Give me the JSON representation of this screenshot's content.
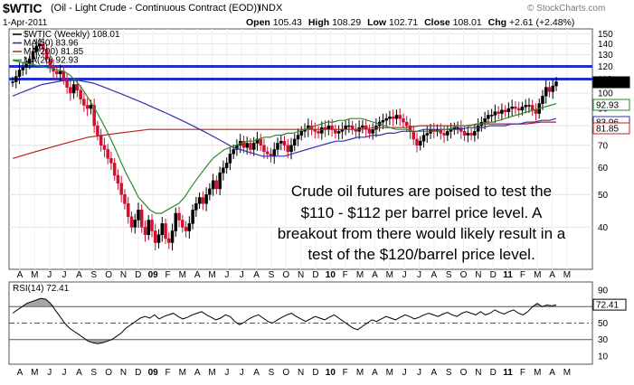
{
  "header": {
    "symbol": "$WTIC",
    "description": "(Oil - Light Crude - Continuous Contract (EOD))",
    "exchange": "INDX",
    "date": "1-Apr-2011",
    "open_label": "Open",
    "open": "105.43",
    "high_label": "High",
    "high": "108.29",
    "low_label": "Low",
    "low": "102.71",
    "close_label": "Close",
    "close": "108.01",
    "chg_label": "Chg",
    "chg": "+2.61 (+2.48%)",
    "watermark": "© StockCharts.com"
  },
  "colors": {
    "up": "#000000",
    "down": "#d01030",
    "ma50": "#3030b0",
    "ma200": "#c02020",
    "ma20": "#2a8a2a",
    "resistance": "#2030d0",
    "rsi_fill": "#808080"
  },
  "chart_data": [
    {
      "type": "candlestick",
      "title": "$WTIC (Weekly) 108.01",
      "scale": "log",
      "ylim": [
        30,
        155
      ],
      "yticks": [
        150,
        140,
        130,
        120,
        110,
        100,
        90,
        80,
        70,
        60,
        50,
        40
      ],
      "xticks": [
        "A",
        "M",
        "J",
        "J",
        "A",
        "S",
        "O",
        "N",
        "D",
        "09",
        "F",
        "M",
        "A",
        "M",
        "J",
        "J",
        "A",
        "S",
        "O",
        "N",
        "D",
        "10",
        "F",
        "M",
        "A",
        "M",
        "J",
        "J",
        "A",
        "S",
        "O",
        "N",
        "D",
        "11",
        "F",
        "M",
        "A",
        "M"
      ],
      "legend": [
        {
          "key": "price",
          "label": "$WTIC (Weekly) 108.01"
        },
        {
          "key": "ma50",
          "label": "MA(50) 83.96"
        },
        {
          "key": "ma200",
          "label": "MA(200) 81.85"
        },
        {
          "key": "ma20",
          "label": "MA(20) 92.93"
        }
      ],
      "horizontal_lines": [
        120,
        110
      ],
      "last_value_tags": [
        {
          "label": "108.01",
          "value": 108.01,
          "key": "price"
        },
        {
          "label": "92.93",
          "value": 92.93,
          "key": "ma20"
        },
        {
          "label": "83.96",
          "value": 83.96,
          "key": "ma50"
        },
        {
          "label": "81.85",
          "value": 81.85,
          "key": "ma200"
        }
      ],
      "annotation": [
        "Crude oil futures are poised to test the",
        "$110 - $112 per barrel price level. A",
        "breakout from there would likely result in a",
        "test of the $120/barrel price level."
      ],
      "close_series": [
        108,
        112,
        117,
        119,
        122,
        126,
        133,
        138,
        140,
        135,
        126,
        120,
        116,
        114,
        116,
        110,
        104,
        100,
        106,
        102,
        96,
        92,
        90,
        92,
        80,
        75,
        70,
        68,
        64,
        62,
        57,
        54,
        50,
        47,
        43,
        40,
        42,
        45,
        40,
        38,
        42,
        39,
        36,
        38,
        41,
        37,
        36,
        39,
        44,
        42,
        40,
        39,
        41,
        45,
        47,
        49,
        47,
        50,
        52,
        55,
        52,
        58,
        60,
        62,
        66,
        68,
        70,
        72,
        69,
        71,
        68,
        71,
        73,
        70,
        67,
        66,
        65,
        68,
        71,
        72,
        70,
        67,
        70,
        73,
        75,
        77,
        78,
        80,
        78,
        77,
        76,
        79,
        78,
        80,
        78,
        76,
        77,
        78,
        80,
        80,
        78,
        77,
        79,
        80,
        78,
        76,
        78,
        80,
        82,
        83,
        84,
        85,
        84,
        86,
        84,
        82,
        80,
        77,
        73,
        70,
        72,
        75,
        76,
        78,
        77,
        78,
        76,
        75,
        77,
        78,
        79,
        79,
        77,
        75,
        76,
        75,
        77,
        80,
        82,
        84,
        86,
        86,
        88,
        87,
        89,
        88,
        90,
        91,
        90,
        89,
        91,
        92,
        92,
        89,
        87,
        93,
        98,
        104,
        101,
        105,
        108
      ],
      "ma20_series": [
        125,
        124,
        123,
        122,
        121,
        120,
        119,
        118,
        117,
        116,
        113,
        109,
        104,
        98,
        92,
        86,
        80,
        74,
        68,
        62,
        57,
        53,
        49,
        47,
        45,
        44,
        44,
        45,
        46,
        47,
        49,
        52,
        55,
        58,
        61,
        64,
        66,
        68,
        69,
        70,
        71,
        72,
        72,
        73,
        74,
        74,
        75,
        75,
        76,
        76,
        77,
        78,
        79,
        80,
        81,
        82,
        82,
        83,
        83,
        84,
        84,
        84,
        83,
        82,
        81,
        80,
        79,
        78,
        78,
        78,
        77,
        77,
        77,
        77,
        77,
        78,
        78,
        79,
        80,
        80,
        80,
        81,
        81,
        82,
        82,
        83,
        84,
        85,
        86,
        87,
        88,
        89,
        90,
        91,
        92,
        93
      ],
      "ma50_series": [
        98,
        100,
        102,
        104,
        106,
        107,
        108,
        109,
        109,
        109,
        108,
        107,
        105,
        103,
        101,
        99,
        97,
        95,
        93,
        91,
        89,
        87,
        85,
        83,
        81,
        79,
        77,
        75,
        73,
        71,
        69,
        68,
        67,
        66,
        65,
        65,
        65,
        65,
        66,
        67,
        68,
        69,
        70,
        71,
        72,
        72,
        73,
        74,
        74,
        75,
        75,
        76,
        76,
        77,
        77,
        77,
        78,
        78,
        78,
        78,
        78,
        78,
        79,
        79,
        79,
        80,
        80,
        80,
        81,
        81,
        82,
        82,
        83,
        83,
        84
      ],
      "ma200_series": [
        64,
        66,
        68,
        70,
        72,
        74,
        75,
        76,
        77,
        78,
        78,
        78,
        78,
        78,
        78,
        78,
        78,
        78,
        78,
        78,
        78,
        78,
        78,
        78,
        79,
        79,
        79,
        80,
        80,
        80,
        80,
        81,
        81,
        81,
        81,
        82,
        82
      ]
    },
    {
      "type": "line",
      "title": "RSI(14) 72.41",
      "ylim": [
        0,
        100
      ],
      "yticks": [
        90,
        70,
        50,
        30,
        10
      ],
      "reference_lines": [
        70,
        50,
        30
      ],
      "last_value_tag": "72.41",
      "xticks": [
        "A",
        "M",
        "J",
        "J",
        "A",
        "S",
        "O",
        "N",
        "D",
        "09",
        "F",
        "M",
        "A",
        "M",
        "J",
        "J",
        "A",
        "S",
        "O",
        "N",
        "D",
        "10",
        "F",
        "M",
        "A",
        "M",
        "J",
        "J",
        "A",
        "S",
        "O",
        "N",
        "D",
        "11",
        "F",
        "M",
        "A",
        "M"
      ],
      "values": [
        62,
        66,
        70,
        74,
        76,
        78,
        80,
        79,
        74,
        66,
        58,
        50,
        44,
        40,
        36,
        32,
        28,
        26,
        25,
        26,
        28,
        30,
        34,
        38,
        44,
        48,
        52,
        56,
        58,
        56,
        60,
        55,
        58,
        60,
        62,
        58,
        55,
        57,
        60,
        62,
        64,
        60,
        57,
        54,
        56,
        60,
        58,
        52,
        48,
        51,
        55,
        58,
        60,
        56,
        52,
        50,
        54,
        57,
        60,
        62,
        58,
        55,
        52,
        55,
        58,
        56,
        54,
        57,
        60,
        56,
        52,
        48,
        44,
        42,
        46,
        50,
        54,
        52,
        55,
        58,
        56,
        54,
        57,
        60,
        58,
        55,
        57,
        60,
        62,
        60,
        58,
        61,
        63,
        60,
        58,
        62,
        64,
        62,
        60,
        64,
        60,
        62,
        66,
        63,
        61,
        64,
        66,
        62,
        60,
        64,
        70,
        74,
        70,
        72,
        71,
        72
      ]
    }
  ]
}
